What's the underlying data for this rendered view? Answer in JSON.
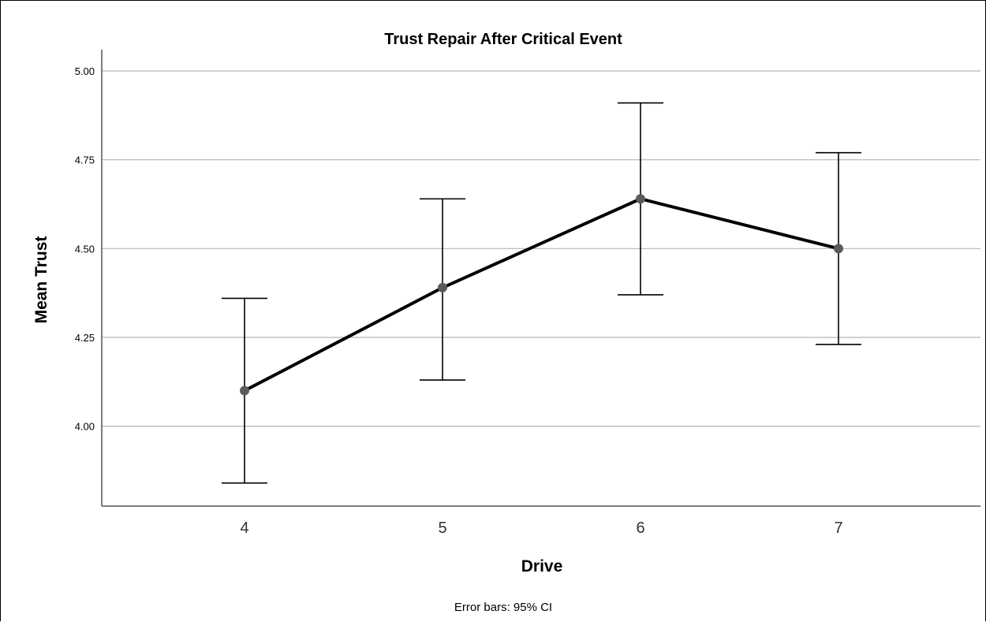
{
  "chart_data": {
    "type": "line",
    "title": "Trust Repair After Critical Event",
    "xlabel": "Drive",
    "ylabel": "Mean Trust",
    "categories": [
      "4",
      "5",
      "6",
      "7"
    ],
    "series": [
      {
        "values": [
          4.1,
          4.39,
          4.64,
          4.5
        ],
        "ci_lower": [
          3.84,
          4.13,
          4.37,
          4.23
        ],
        "ci_upper": [
          4.36,
          4.64,
          4.91,
          4.77
        ]
      }
    ],
    "yticks": [
      4.0,
      4.25,
      4.5,
      4.75,
      5.0
    ],
    "ytick_labels": [
      "4.00",
      "4.25",
      "4.50",
      "4.75",
      "5.00"
    ],
    "ylim": [
      3.775,
      5.06
    ],
    "grid": "horizontal",
    "footnote": "Error bars: 95% CI",
    "colors": {
      "line": "#000000",
      "marker": "#5a5a5a",
      "error_bar": "#000000",
      "grid": "#b4b4b4",
      "axis": "#555555"
    }
  }
}
